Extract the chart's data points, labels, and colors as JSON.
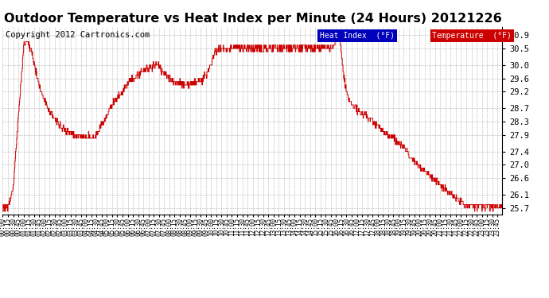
{
  "title": "Outdoor Temperature vs Heat Index per Minute (24 Hours) 20121226",
  "copyright": "Copyright 2012 Cartronics.com",
  "legend_heat_index": "Heat Index  (°F)",
  "legend_temperature": "Temperature  (°F)",
  "ylim": [
    25.5,
    31.15
  ],
  "yticks": [
    25.7,
    26.1,
    26.6,
    27.0,
    27.4,
    27.9,
    28.3,
    28.7,
    29.2,
    29.6,
    30.0,
    30.5,
    30.9
  ],
  "line_color": "#cc0000",
  "background_color": "#ffffff",
  "grid_color": "#aaaaaa",
  "title_fontsize": 11.5,
  "copyright_fontsize": 7.5,
  "legend_fontsize": 7,
  "tick_fontsize": 5.5,
  "ytick_fontsize": 7.5,
  "total_minutes": 1440,
  "waypoints": [
    [
      0,
      25.7
    ],
    [
      15,
      25.75
    ],
    [
      30,
      26.3
    ],
    [
      45,
      28.5
    ],
    [
      60,
      30.6
    ],
    [
      70,
      30.7
    ],
    [
      80,
      30.5
    ],
    [
      95,
      29.8
    ],
    [
      110,
      29.2
    ],
    [
      130,
      28.7
    ],
    [
      155,
      28.3
    ],
    [
      180,
      28.0
    ],
    [
      210,
      27.9
    ],
    [
      230,
      27.85
    ],
    [
      240,
      27.85
    ],
    [
      255,
      27.85
    ],
    [
      265,
      27.85
    ],
    [
      275,
      28.0
    ],
    [
      295,
      28.4
    ],
    [
      320,
      28.9
    ],
    [
      345,
      29.2
    ],
    [
      365,
      29.5
    ],
    [
      390,
      29.7
    ],
    [
      410,
      29.85
    ],
    [
      430,
      29.95
    ],
    [
      445,
      30.0
    ],
    [
      455,
      29.85
    ],
    [
      470,
      29.7
    ],
    [
      490,
      29.55
    ],
    [
      510,
      29.45
    ],
    [
      525,
      29.4
    ],
    [
      545,
      29.45
    ],
    [
      560,
      29.5
    ],
    [
      575,
      29.55
    ],
    [
      590,
      29.8
    ],
    [
      610,
      30.35
    ],
    [
      625,
      30.5
    ],
    [
      635,
      30.55
    ],
    [
      645,
      30.45
    ],
    [
      655,
      30.5
    ],
    [
      665,
      30.55
    ],
    [
      675,
      30.5
    ],
    [
      685,
      30.5
    ],
    [
      700,
      30.5
    ],
    [
      715,
      30.5
    ],
    [
      730,
      30.5
    ],
    [
      750,
      30.5
    ],
    [
      770,
      30.5
    ],
    [
      790,
      30.5
    ],
    [
      810,
      30.5
    ],
    [
      830,
      30.5
    ],
    [
      850,
      30.5
    ],
    [
      870,
      30.5
    ],
    [
      890,
      30.5
    ],
    [
      910,
      30.5
    ],
    [
      930,
      30.5
    ],
    [
      950,
      30.55
    ],
    [
      960,
      30.75
    ],
    [
      965,
      30.9
    ],
    [
      970,
      31.0
    ],
    [
      972,
      30.7
    ],
    [
      975,
      30.3
    ],
    [
      980,
      29.8
    ],
    [
      990,
      29.2
    ],
    [
      1000,
      28.9
    ],
    [
      1010,
      28.75
    ],
    [
      1020,
      28.65
    ],
    [
      1035,
      28.55
    ],
    [
      1050,
      28.45
    ],
    [
      1065,
      28.35
    ],
    [
      1080,
      28.15
    ],
    [
      1100,
      27.95
    ],
    [
      1115,
      27.85
    ],
    [
      1130,
      27.75
    ],
    [
      1145,
      27.6
    ],
    [
      1160,
      27.45
    ],
    [
      1175,
      27.2
    ],
    [
      1190,
      27.05
    ],
    [
      1205,
      26.9
    ],
    [
      1220,
      26.75
    ],
    [
      1235,
      26.65
    ],
    [
      1250,
      26.5
    ],
    [
      1265,
      26.35
    ],
    [
      1280,
      26.2
    ],
    [
      1295,
      26.1
    ],
    [
      1310,
      26.0
    ],
    [
      1325,
      25.85
    ],
    [
      1340,
      25.75
    ],
    [
      1355,
      25.75
    ],
    [
      1370,
      25.75
    ],
    [
      1385,
      25.75
    ],
    [
      1400,
      25.75
    ],
    [
      1415,
      25.75
    ],
    [
      1430,
      25.7
    ],
    [
      1439,
      25.7
    ]
  ]
}
